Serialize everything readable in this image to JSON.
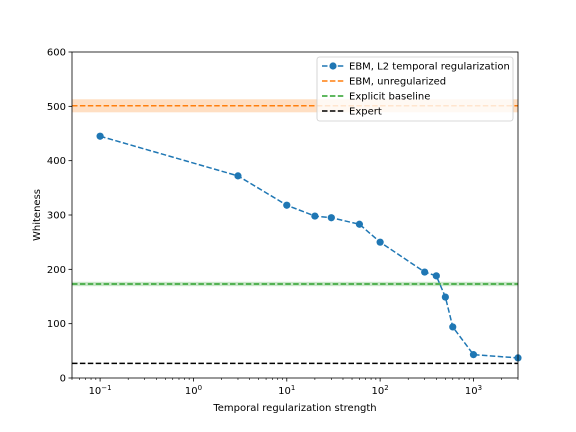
{
  "chart_data": {
    "type": "line",
    "xscale": "log",
    "xlabel": "Temporal regularization strength",
    "ylabel": "Whiteness",
    "xlim": [
      0.05,
      3000
    ],
    "ylim": [
      0,
      600
    ],
    "yticks": [
      0,
      100,
      200,
      300,
      400,
      500,
      600
    ],
    "xticks": [
      {
        "value": 0.1,
        "base": "10",
        "exp": "−1"
      },
      {
        "value": 1,
        "base": "10",
        "exp": "0"
      },
      {
        "value": 10,
        "base": "10",
        "exp": "1"
      },
      {
        "value": 100,
        "base": "10",
        "exp": "2"
      },
      {
        "value": 1000,
        "base": "10",
        "exp": "3"
      }
    ],
    "grid": false,
    "legend_position": "top-right",
    "series": [
      {
        "name": "EBM, L2 temporal regularization",
        "color": "#1f77b4",
        "style": "dashed-with-markers",
        "x": [
          0.1,
          3,
          10,
          20,
          30,
          60,
          100,
          300,
          400,
          500,
          600,
          1000,
          3000
        ],
        "y": [
          445,
          372,
          318,
          298,
          295,
          283,
          250,
          195,
          188,
          149,
          94,
          43,
          37
        ]
      }
    ],
    "reference_lines": [
      {
        "name": "EBM, unregularized",
        "color": "#ff7f0e",
        "y": 501,
        "band": [
          489,
          513
        ]
      },
      {
        "name": "Explicit baseline",
        "color": "#2ca02c",
        "y": 173,
        "band": [
          169,
          177
        ]
      },
      {
        "name": "Expert",
        "color": "#000000",
        "y": 27
      }
    ]
  }
}
